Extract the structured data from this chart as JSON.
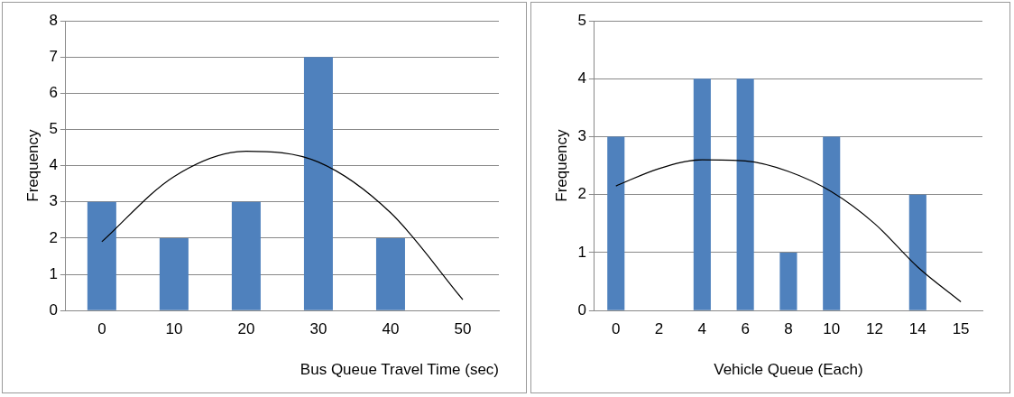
{
  "chart_data": [
    {
      "type": "bar",
      "categories": [
        "0",
        "10",
        "20",
        "30",
        "40",
        "50"
      ],
      "series": [
        {
          "color": "#4f81bd",
          "values": [
            3,
            2,
            3,
            7,
            2,
            0
          ]
        },
        {
          "type": "line",
          "color": "#000000",
          "values": [
            1.9,
            3.7,
            4.4,
            4.1,
            2.7,
            0.3
          ]
        }
      ],
      "ylim": [
        0,
        8
      ],
      "yticks": [
        0,
        1,
        2,
        3,
        4,
        5,
        6,
        7,
        8
      ],
      "ylabel": "Frequency",
      "xlabel": "Bus Queue Travel Time (sec)",
      "grid": "y",
      "marker": "none"
    },
    {
      "type": "bar",
      "categories": [
        "0",
        "2",
        "4",
        "6",
        "8",
        "10",
        "12",
        "14",
        "15"
      ],
      "series": [
        {
          "color": "#4f81bd",
          "values": [
            3,
            0,
            4,
            4,
            1,
            3,
            0,
            2,
            0
          ]
        },
        {
          "type": "line",
          "color": "#000000",
          "values": [
            2.15,
            2.45,
            2.6,
            2.58,
            2.4,
            2.05,
            1.5,
            0.75,
            0.15
          ]
        }
      ],
      "ylim": [
        0,
        5
      ],
      "yticks": [
        0,
        1,
        2,
        3,
        4,
        5
      ],
      "ylabel": "Frequency",
      "xlabel": "Vehicle Queue (Each)",
      "grid": "y",
      "marker": "none"
    }
  ]
}
